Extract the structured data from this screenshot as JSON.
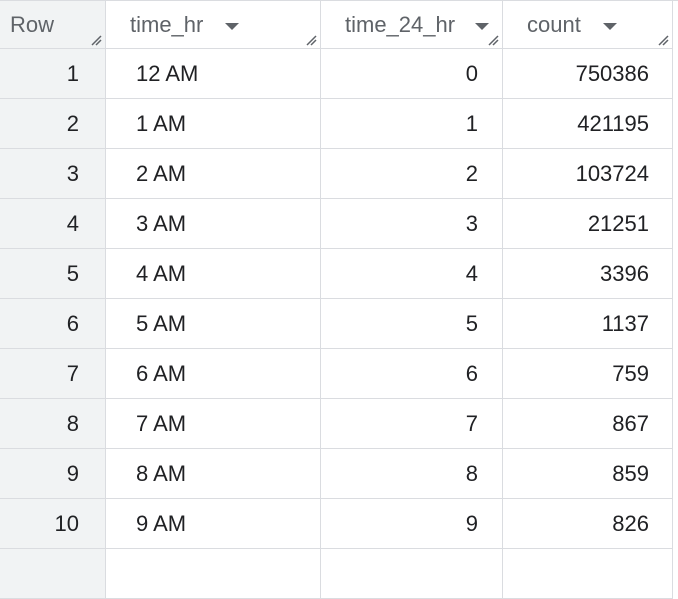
{
  "table": {
    "columns": [
      {
        "key": "row",
        "label": "Row"
      },
      {
        "key": "time_hr",
        "label": "time_hr"
      },
      {
        "key": "time_24_hr",
        "label": "time_24_hr"
      },
      {
        "key": "count",
        "label": "count"
      }
    ],
    "rows": [
      {
        "row": "1",
        "time_hr": "12 AM",
        "time_24_hr": "0",
        "count": "750386"
      },
      {
        "row": "2",
        "time_hr": "1 AM",
        "time_24_hr": "1",
        "count": "421195"
      },
      {
        "row": "3",
        "time_hr": "2 AM",
        "time_24_hr": "2",
        "count": "103724"
      },
      {
        "row": "4",
        "time_hr": "3 AM",
        "time_24_hr": "3",
        "count": "21251"
      },
      {
        "row": "5",
        "time_hr": "4 AM",
        "time_24_hr": "4",
        "count": "3396"
      },
      {
        "row": "6",
        "time_hr": "5 AM",
        "time_24_hr": "5",
        "count": "1137"
      },
      {
        "row": "7",
        "time_hr": "6 AM",
        "time_24_hr": "6",
        "count": "759"
      },
      {
        "row": "8",
        "time_hr": "7 AM",
        "time_24_hr": "7",
        "count": "867"
      },
      {
        "row": "9",
        "time_hr": "8 AM",
        "time_24_hr": "8",
        "count": "859"
      },
      {
        "row": "10",
        "time_hr": "9 AM",
        "time_24_hr": "9",
        "count": "826"
      }
    ]
  },
  "icons": {
    "sort": "sort-dropdown-icon",
    "resize": "column-resize-icon"
  },
  "colors": {
    "grid_line": "#dadce0",
    "row_header_bg": "#f1f3f4",
    "header_text": "#5f6368",
    "cell_text": "#202124"
  }
}
